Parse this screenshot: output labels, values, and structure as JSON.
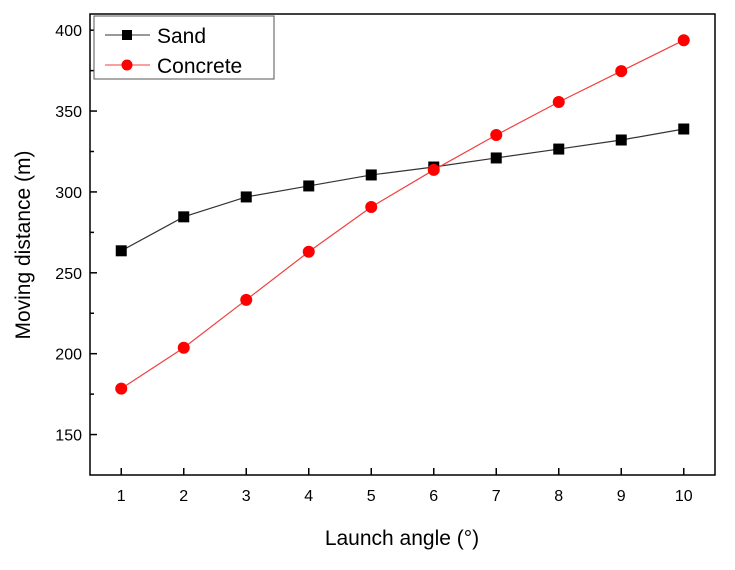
{
  "chart_data": {
    "type": "line",
    "title": "",
    "xlabel": "Launch angle (°)",
    "ylabel": "Moving distance (m)",
    "x": [
      1,
      2,
      3,
      4,
      5,
      6,
      7,
      8,
      9,
      10
    ],
    "xlim": [
      0.5,
      10.5
    ],
    "ylim": [
      125,
      410
    ],
    "xticks": [
      1,
      2,
      3,
      4,
      5,
      6,
      7,
      8,
      9,
      10
    ],
    "yticks": [
      150,
      200,
      250,
      300,
      350,
      400
    ],
    "grid": false,
    "legend_position": "top-left",
    "series": [
      {
        "name": "Sand",
        "marker": "square",
        "color": "#000000",
        "line_color": "#333333",
        "values": [
          263.6,
          284.6,
          296.9,
          303.7,
          310.5,
          315.4,
          321.0,
          326.5,
          332.1,
          338.9
        ]
      },
      {
        "name": "Concrete",
        "marker": "circle",
        "color": "#ff0000",
        "line_color": "#f04040",
        "values": [
          178.4,
          203.7,
          233.3,
          263.0,
          290.7,
          313.6,
          335.2,
          355.6,
          374.7,
          393.8
        ]
      }
    ]
  }
}
